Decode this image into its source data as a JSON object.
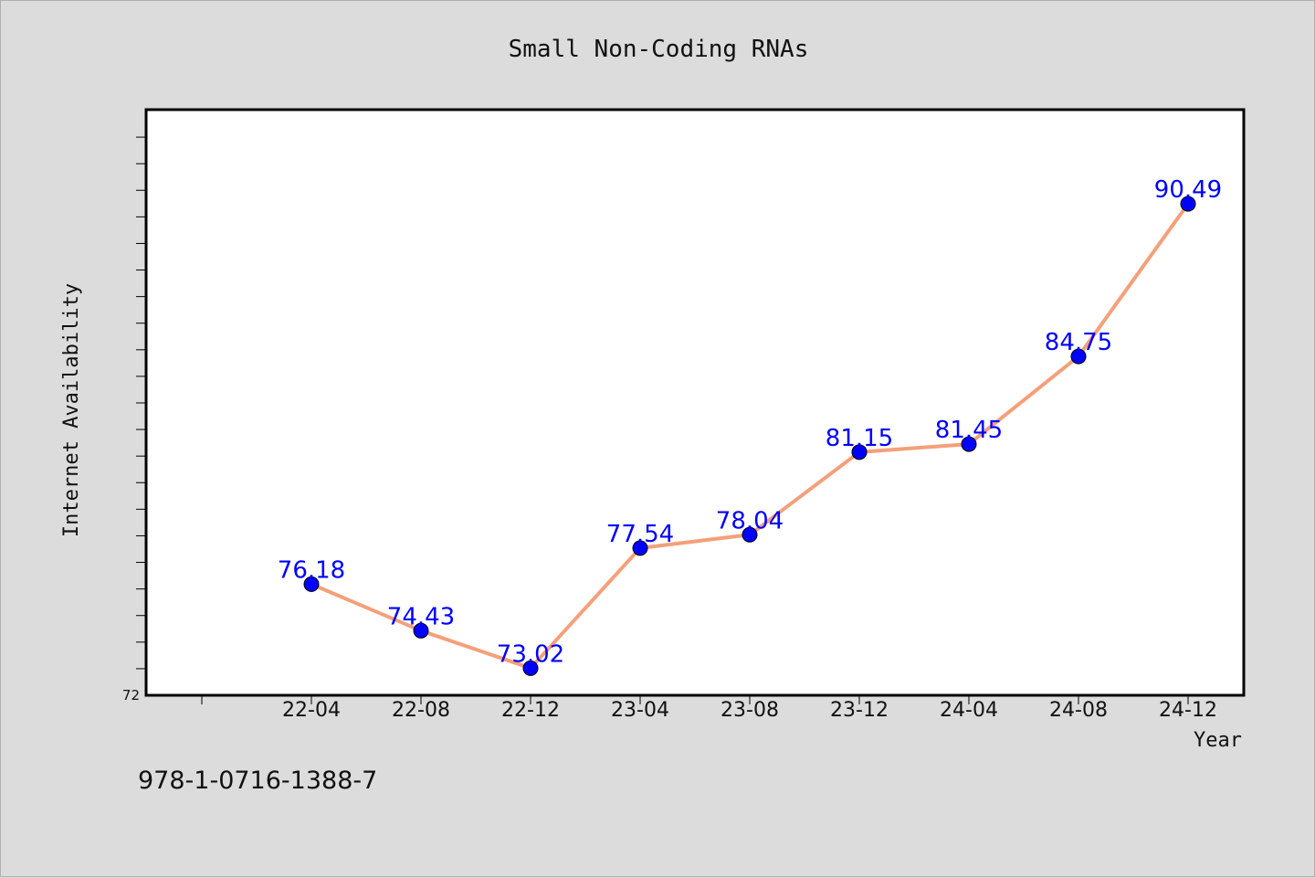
{
  "chart_data": {
    "type": "line",
    "title": "Small Non-Coding RNAs",
    "xlabel": "Year",
    "ylabel": "Internet Availability",
    "categories": [
      "22-04",
      "22-08",
      "22-12",
      "23-04",
      "23-08",
      "23-12",
      "24-04",
      "24-08",
      "24-12"
    ],
    "values": [
      76.18,
      74.43,
      73.02,
      77.54,
      78.04,
      81.15,
      81.45,
      84.75,
      90.49
    ],
    "value_labels": [
      "76.18",
      "74.43",
      "73.02",
      "77.54",
      "78.04",
      "81.15",
      "81.45",
      "84.75",
      "90.49"
    ],
    "ylim": [
      72,
      94
    ],
    "ytick_labels": [
      "72"
    ],
    "grid": false,
    "line_color": "#f4a07a",
    "marker_color": "#0000ff",
    "label_color": "#0000ff"
  },
  "footer": {
    "code": "978-1-0716-1388-7"
  }
}
